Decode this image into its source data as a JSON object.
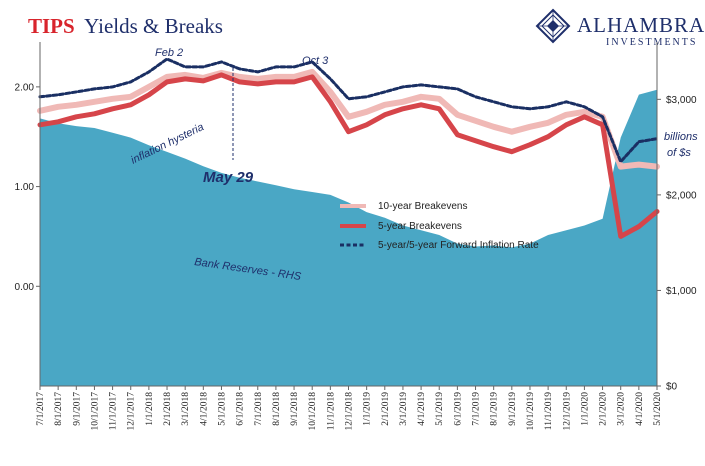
{
  "title": {
    "strong": "TIPS",
    "rest": "Yields & Breaks"
  },
  "logo": {
    "main": "ALHAMBRA",
    "sub": "INVESTMENTS"
  },
  "annotations": {
    "feb2": "Feb 2",
    "oct3": "Oct 3",
    "hysteria": "inflation hysteria",
    "may29": "May 29",
    "reserves": "Bank Reserves - RHS",
    "rhs_units_1": "billions",
    "rhs_units_2": "of $s"
  },
  "colors": {
    "be10": "#f0b9b6",
    "be5": "#d6454a",
    "fwd": "#1a2f63",
    "reserves": "#4aa7c5",
    "marker": "#1f2f6b"
  },
  "chart_data": {
    "type": "line",
    "title": "TIPS Yields & Breaks",
    "x_start": "2017-07",
    "x_ticks": [
      "7/1/2017",
      "8/1/2017",
      "9/1/2017",
      "10/1/2017",
      "11/1/2017",
      "12/1/2017",
      "1/1/2018",
      "2/1/2018",
      "3/1/2018",
      "4/1/2018",
      "5/1/2018",
      "6/1/2018",
      "7/1/2018",
      "8/1/2018",
      "9/1/2018",
      "10/1/2018",
      "11/1/2018",
      "12/1/2018",
      "1/1/2019",
      "2/1/2019",
      "3/1/2019",
      "4/1/2019",
      "5/1/2019",
      "6/1/2019",
      "7/1/2019",
      "8/1/2019",
      "9/1/2019",
      "10/1/2019",
      "11/1/2019",
      "12/1/2019",
      "1/1/2020",
      "2/1/2020",
      "3/1/2020",
      "4/1/2020",
      "5/1/2020"
    ],
    "y_left": {
      "ticks": [
        "0.00",
        "1.00",
        "2.00"
      ],
      "range": [
        -1.0,
        2.45
      ]
    },
    "y_right": {
      "ticks": [
        "$0",
        "$1,000",
        "$2,000",
        "$3,000"
      ],
      "range": [
        0,
        3600
      ]
    },
    "grid": false,
    "legend_position": "middle",
    "series": [
      {
        "name": "10-year Breakevens",
        "axis": "left",
        "values": [
          1.76,
          1.8,
          1.82,
          1.85,
          1.88,
          1.9,
          2.0,
          2.1,
          2.12,
          2.09,
          2.14,
          2.1,
          2.08,
          2.1,
          2.1,
          2.15,
          1.95,
          1.7,
          1.75,
          1.82,
          1.85,
          1.9,
          1.88,
          1.72,
          1.66,
          1.6,
          1.55,
          1.6,
          1.64,
          1.72,
          1.75,
          1.7,
          1.2,
          1.22,
          1.2
        ]
      },
      {
        "name": "5-year Breakevens",
        "axis": "left",
        "values": [
          1.62,
          1.65,
          1.7,
          1.73,
          1.78,
          1.82,
          1.92,
          2.05,
          2.08,
          2.06,
          2.12,
          2.05,
          2.03,
          2.05,
          2.05,
          2.1,
          1.85,
          1.55,
          1.62,
          1.72,
          1.78,
          1.82,
          1.78,
          1.52,
          1.46,
          1.4,
          1.35,
          1.42,
          1.5,
          1.62,
          1.7,
          1.62,
          0.5,
          0.6,
          0.75
        ]
      },
      {
        "name": "5-year/5-year Forward Inflation Rate",
        "axis": "left",
        "values": [
          1.9,
          1.92,
          1.95,
          1.98,
          2.0,
          2.05,
          2.15,
          2.28,
          2.2,
          2.2,
          2.25,
          2.18,
          2.15,
          2.2,
          2.2,
          2.25,
          2.08,
          1.88,
          1.9,
          1.95,
          2.0,
          2.02,
          2.0,
          1.98,
          1.9,
          1.85,
          1.8,
          1.78,
          1.8,
          1.85,
          1.8,
          1.7,
          1.25,
          1.45,
          1.48
        ]
      },
      {
        "name": "Bank Reserves - RHS",
        "axis": "right",
        "values": [
          2800,
          2750,
          2720,
          2700,
          2650,
          2600,
          2520,
          2450,
          2380,
          2300,
          2230,
          2180,
          2140,
          2100,
          2060,
          2030,
          2000,
          1920,
          1820,
          1760,
          1680,
          1630,
          1580,
          1490,
          1460,
          1470,
          1450,
          1490,
          1580,
          1630,
          1680,
          1750,
          2600,
          3050,
          3100
        ]
      }
    ],
    "vline": {
      "at": "5/29/2018",
      "label": "May 29"
    }
  }
}
